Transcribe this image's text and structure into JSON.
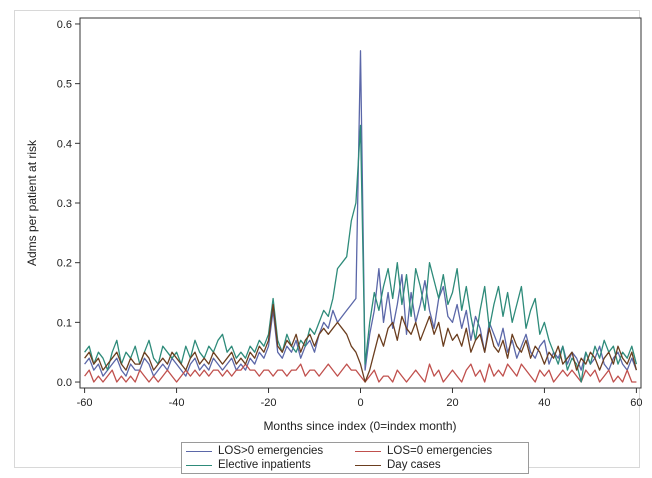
{
  "chart_data": {
    "type": "line",
    "xlabel": "Months since index (0=index month)",
    "ylabel": "Adms per patient at risk",
    "xlim": [
      -61,
      61
    ],
    "ylim": [
      -0.01,
      0.61
    ],
    "xticks": [
      -60,
      -40,
      -20,
      0,
      20,
      40,
      60
    ],
    "yticks": [
      0.0,
      0.1,
      0.2,
      0.3,
      0.4,
      0.5,
      0.6
    ],
    "xtick_labels": [
      "-60",
      "-40",
      "-20",
      "0",
      "20",
      "40",
      "60"
    ],
    "ytick_labels": [
      "0.0",
      "0.1",
      "0.2",
      "0.3",
      "0.4",
      "0.5",
      "0.6"
    ],
    "grid": false,
    "legend_position": "bottom",
    "x": [
      -60,
      -59,
      -58,
      -57,
      -56,
      -55,
      -54,
      -53,
      -52,
      -51,
      -50,
      -49,
      -48,
      -47,
      -46,
      -45,
      -44,
      -43,
      -42,
      -41,
      -40,
      -39,
      -38,
      -37,
      -36,
      -35,
      -34,
      -33,
      -32,
      -31,
      -30,
      -29,
      -28,
      -27,
      -26,
      -25,
      -24,
      -23,
      -22,
      -21,
      -20,
      -19,
      -18,
      -17,
      -16,
      -15,
      -14,
      -13,
      -12,
      -11,
      -10,
      -9,
      -8,
      -7,
      -6,
      -5,
      -4,
      -3,
      -2,
      -1,
      0,
      1,
      2,
      3,
      4,
      5,
      6,
      7,
      8,
      9,
      10,
      11,
      12,
      13,
      14,
      15,
      16,
      17,
      18,
      19,
      20,
      21,
      22,
      23,
      24,
      25,
      26,
      27,
      28,
      29,
      30,
      31,
      32,
      33,
      34,
      35,
      36,
      37,
      38,
      39,
      40,
      41,
      42,
      43,
      44,
      45,
      46,
      47,
      48,
      49,
      50,
      51,
      52,
      53,
      54,
      55,
      56,
      57,
      58,
      59,
      60
    ],
    "series": [
      {
        "name": "LOS>0 emergencies",
        "color": "#5b67a8",
        "values": [
          0.03,
          0.04,
          0.02,
          0.03,
          0.01,
          0.02,
          0.03,
          0.04,
          0.02,
          0.01,
          0.03,
          0.02,
          0.02,
          0.04,
          0.03,
          0.01,
          0.02,
          0.03,
          0.02,
          0.04,
          0.03,
          0.02,
          0.01,
          0.03,
          0.04,
          0.02,
          0.03,
          0.02,
          0.04,
          0.03,
          0.02,
          0.03,
          0.04,
          0.02,
          0.03,
          0.02,
          0.04,
          0.03,
          0.05,
          0.04,
          0.06,
          0.12,
          0.05,
          0.04,
          0.06,
          0.05,
          0.07,
          0.04,
          0.06,
          0.07,
          0.05,
          0.08,
          0.1,
          0.09,
          0.12,
          0.1,
          0.11,
          0.12,
          0.13,
          0.14,
          0.555,
          0.02,
          0.08,
          0.12,
          0.19,
          0.1,
          0.15,
          0.09,
          0.13,
          0.18,
          0.08,
          0.15,
          0.1,
          0.13,
          0.17,
          0.12,
          0.09,
          0.14,
          0.16,
          0.11,
          0.1,
          0.13,
          0.09,
          0.12,
          0.07,
          0.11,
          0.09,
          0.05,
          0.1,
          0.08,
          0.06,
          0.09,
          0.05,
          0.07,
          0.04,
          0.06,
          0.08,
          0.05,
          0.04,
          0.06,
          0.07,
          0.03,
          0.05,
          0.04,
          0.06,
          0.03,
          0.05,
          0.04,
          0.02,
          0.05,
          0.03,
          0.04,
          0.06,
          0.03,
          0.02,
          0.04,
          0.05,
          0.03,
          0.02,
          0.04,
          0.02
        ]
      },
      {
        "name": "LOS=0 emergencies",
        "color": "#c0504d",
        "values": [
          0.01,
          0.02,
          0.0,
          0.01,
          0.0,
          0.01,
          0.02,
          0.0,
          0.01,
          0.0,
          0.01,
          0.0,
          0.02,
          0.01,
          0.0,
          0.01,
          0.0,
          0.01,
          0.02,
          0.01,
          0.0,
          0.01,
          0.02,
          0.01,
          0.02,
          0.01,
          0.02,
          0.01,
          0.02,
          0.02,
          0.01,
          0.02,
          0.01,
          0.02,
          0.02,
          0.03,
          0.02,
          0.02,
          0.01,
          0.02,
          0.02,
          0.01,
          0.02,
          0.02,
          0.01,
          0.02,
          0.02,
          0.03,
          0.01,
          0.02,
          0.02,
          0.01,
          0.02,
          0.03,
          0.02,
          0.01,
          0.02,
          0.03,
          0.02,
          0.02,
          0.01,
          0.0,
          0.01,
          0.02,
          0.0,
          0.01,
          0.01,
          0.0,
          0.02,
          0.01,
          0.0,
          0.01,
          0.02,
          0.01,
          0.0,
          0.03,
          0.01,
          0.02,
          0.0,
          0.01,
          0.02,
          0.01,
          0.0,
          0.02,
          0.03,
          0.01,
          0.02,
          0.0,
          0.03,
          0.01,
          0.02,
          0.01,
          0.03,
          0.02,
          0.01,
          0.03,
          0.02,
          0.01,
          0.0,
          0.02,
          0.01,
          0.02,
          0.0,
          0.01,
          0.02,
          0.01,
          0.02,
          0.01,
          0.0,
          0.02,
          0.01,
          0.02,
          0.0,
          0.01,
          0.02,
          0.0,
          0.01,
          0.0,
          0.02,
          0.0,
          0.0
        ]
      },
      {
        "name": "Elective inpatients",
        "color": "#2e8b7a",
        "values": [
          0.05,
          0.06,
          0.03,
          0.05,
          0.04,
          0.02,
          0.05,
          0.07,
          0.03,
          0.05,
          0.04,
          0.06,
          0.03,
          0.05,
          0.07,
          0.04,
          0.03,
          0.06,
          0.05,
          0.04,
          0.05,
          0.03,
          0.06,
          0.04,
          0.07,
          0.05,
          0.04,
          0.06,
          0.05,
          0.07,
          0.08,
          0.05,
          0.06,
          0.04,
          0.05,
          0.04,
          0.06,
          0.05,
          0.07,
          0.06,
          0.08,
          0.14,
          0.07,
          0.05,
          0.08,
          0.06,
          0.05,
          0.07,
          0.06,
          0.09,
          0.08,
          0.1,
          0.12,
          0.11,
          0.14,
          0.19,
          0.2,
          0.21,
          0.27,
          0.3,
          0.43,
          0.03,
          0.1,
          0.15,
          0.12,
          0.16,
          0.19,
          0.14,
          0.2,
          0.13,
          0.18,
          0.11,
          0.19,
          0.16,
          0.12,
          0.2,
          0.17,
          0.14,
          0.18,
          0.13,
          0.15,
          0.19,
          0.12,
          0.16,
          0.11,
          0.07,
          0.12,
          0.16,
          0.09,
          0.13,
          0.16,
          0.11,
          0.15,
          0.1,
          0.13,
          0.16,
          0.09,
          0.12,
          0.14,
          0.08,
          0.1,
          0.07,
          0.05,
          0.03,
          0.06,
          0.02,
          0.04,
          0.03,
          0.0,
          0.05,
          0.03,
          0.06,
          0.04,
          0.07,
          0.05,
          0.06,
          0.03,
          0.05,
          0.04,
          0.06,
          0.03
        ]
      },
      {
        "name": "Day cases",
        "color": "#6b3e1f",
        "values": [
          0.04,
          0.05,
          0.03,
          0.04,
          0.02,
          0.03,
          0.04,
          0.05,
          0.03,
          0.02,
          0.04,
          0.03,
          0.03,
          0.05,
          0.04,
          0.02,
          0.03,
          0.04,
          0.03,
          0.05,
          0.04,
          0.03,
          0.02,
          0.04,
          0.05,
          0.03,
          0.04,
          0.03,
          0.05,
          0.04,
          0.03,
          0.04,
          0.05,
          0.03,
          0.04,
          0.03,
          0.05,
          0.04,
          0.06,
          0.05,
          0.07,
          0.13,
          0.06,
          0.05,
          0.07,
          0.06,
          0.08,
          0.05,
          0.07,
          0.08,
          0.06,
          0.08,
          0.09,
          0.08,
          0.09,
          0.1,
          0.09,
          0.08,
          0.06,
          0.05,
          0.03,
          0.0,
          0.02,
          0.05,
          0.08,
          0.06,
          0.09,
          0.1,
          0.07,
          0.11,
          0.09,
          0.08,
          0.1,
          0.07,
          0.09,
          0.11,
          0.08,
          0.1,
          0.06,
          0.09,
          0.07,
          0.08,
          0.06,
          0.09,
          0.05,
          0.07,
          0.08,
          0.05,
          0.09,
          0.06,
          0.05,
          0.07,
          0.04,
          0.08,
          0.06,
          0.05,
          0.07,
          0.04,
          0.06,
          0.05,
          0.03,
          0.05,
          0.04,
          0.06,
          0.03,
          0.04,
          0.05,
          0.02,
          0.04,
          0.03,
          0.05,
          0.04,
          0.02,
          0.04,
          0.05,
          0.03,
          0.06,
          0.04,
          0.03,
          0.05,
          0.02
        ]
      }
    ]
  }
}
